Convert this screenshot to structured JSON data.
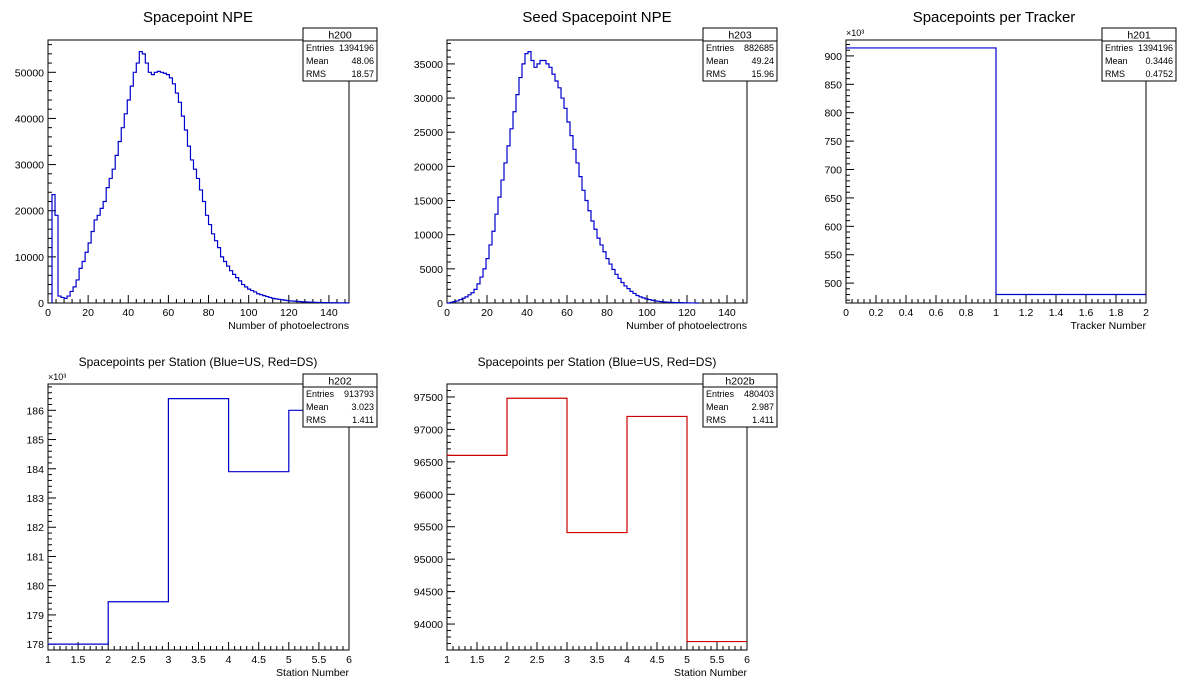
{
  "chart_data": [
    {
      "type": "histogram",
      "title": "Spacepoint NPE",
      "xlabel": "Number of photoelectrons",
      "ylabel": "",
      "xlim": [
        0,
        150
      ],
      "ylim": [
        0,
        57000
      ],
      "xticks": [
        "0",
        "20",
        "40",
        "60",
        "80",
        "100",
        "120",
        "140"
      ],
      "yticks": [
        "0",
        "10000",
        "20000",
        "30000",
        "40000",
        "50000"
      ],
      "y_multiplier": "",
      "line_color": "#0000cc",
      "stats": {
        "name": "h200",
        "entries_label": "Entries",
        "entries": "1394196",
        "mean_label": "Mean",
        "mean": "48.06",
        "rms_label": "RMS",
        "rms": "18.57"
      },
      "bins": {
        "start": 2,
        "width": 1.5
      },
      "values": [
        23500,
        19000,
        1500,
        1200,
        1000,
        1500,
        2500,
        3500,
        5000,
        7500,
        9000,
        11000,
        13000,
        15500,
        18000,
        19000,
        20500,
        22000,
        25000,
        27000,
        29000,
        32000,
        35000,
        38000,
        41000,
        44000,
        47000,
        50000,
        52000,
        54500,
        54000,
        52000,
        50000,
        49500,
        50000,
        50200,
        50000,
        49800,
        49500,
        48800,
        47500,
        45500,
        43500,
        40500,
        37500,
        34000,
        31000,
        29000,
        27000,
        24500,
        22000,
        19000,
        17000,
        15000,
        13500,
        12000,
        10000,
        9000,
        8000,
        7000,
        6200,
        5500,
        4800,
        4000,
        3500,
        3000,
        2700,
        2400,
        2000,
        1800,
        1600,
        1400,
        1200,
        1000,
        900,
        800,
        700,
        600,
        500,
        450,
        400,
        350,
        300,
        250,
        220,
        200,
        180,
        150,
        120,
        100,
        90,
        80,
        70,
        60,
        50,
        40,
        30,
        20,
        20
      ]
    },
    {
      "type": "histogram",
      "title": "Seed Spacepoint NPE",
      "xlabel": "Number of photoelectrons",
      "ylabel": "",
      "xlim": [
        0,
        150
      ],
      "ylim": [
        0,
        38500
      ],
      "xticks": [
        "0",
        "20",
        "40",
        "60",
        "80",
        "100",
        "120",
        "140"
      ],
      "yticks": [
        "0",
        "5000",
        "10000",
        "15000",
        "20000",
        "25000",
        "30000",
        "35000"
      ],
      "y_multiplier": "",
      "line_color": "#0000cc",
      "stats": {
        "name": "h203",
        "entries_label": "Entries",
        "entries": "882685",
        "mean_label": "Mean",
        "mean": "49.24",
        "rms_label": "RMS",
        "rms": "15.96"
      },
      "bins": {
        "start": 0,
        "width": 1.5
      },
      "values": [
        0,
        100,
        200,
        300,
        500,
        700,
        900,
        1200,
        1500,
        2000,
        2800,
        3800,
        5000,
        6500,
        8500,
        10500,
        13000,
        15500,
        18000,
        20500,
        23000,
        25500,
        28000,
        30500,
        33000,
        35000,
        36500,
        36800,
        35500,
        34500,
        35000,
        35500,
        35500,
        35000,
        34500,
        33500,
        32500,
        31500,
        30000,
        28500,
        26500,
        24500,
        22500,
        20500,
        18500,
        16500,
        15000,
        13500,
        12000,
        10800,
        9500,
        8500,
        7500,
        6500,
        5700,
        4900,
        4200,
        3600,
        3000,
        2500,
        2100,
        1700,
        1400,
        1100,
        900,
        750,
        600,
        500,
        400,
        300,
        250,
        200,
        150,
        120,
        100,
        80,
        60,
        50,
        40,
        30,
        20,
        10,
        10,
        5
      ]
    },
    {
      "type": "histogram",
      "title": "Spacepoints per Tracker",
      "xlabel": "Tracker Number",
      "ylabel": "",
      "xlim": [
        0,
        2
      ],
      "ylim": [
        465,
        928
      ],
      "xticks": [
        "0",
        "0.2",
        "0.4",
        "0.6",
        "0.8",
        "1",
        "1.2",
        "1.4",
        "1.6",
        "1.8",
        "2"
      ],
      "yticks": [
        "500",
        "550",
        "600",
        "650",
        "700",
        "750",
        "800",
        "850",
        "900"
      ],
      "y_multiplier": "×10³",
      "line_color": "#0000cc",
      "stats": {
        "name": "h201",
        "entries_label": "Entries",
        "entries": "1394196",
        "mean_label": "Mean",
        "mean": "0.3446",
        "rms_label": "RMS",
        "rms": "0.4752"
      },
      "bins": {
        "start": 0,
        "width": 1
      },
      "values": [
        914,
        480
      ]
    },
    {
      "type": "histogram",
      "title": "Spacepoints per Station (Blue=US, Red=DS)",
      "xlabel": "Station Number",
      "ylabel": "",
      "xlim": [
        1,
        6
      ],
      "ylim": [
        177.8,
        186.9
      ],
      "xticks": [
        "1",
        "1.5",
        "2",
        "2.5",
        "3",
        "3.5",
        "4",
        "4.5",
        "5",
        "5.5",
        "6"
      ],
      "yticks": [
        "178",
        "179",
        "180",
        "181",
        "182",
        "183",
        "184",
        "185",
        "186"
      ],
      "y_multiplier": "×10³",
      "line_color": "#0000cc",
      "stats": {
        "name": "h202",
        "entries_label": "Entries",
        "entries": "913793",
        "mean_label": "Mean",
        "mean": "3.023",
        "rms_label": "RMS",
        "rms": "1.411"
      },
      "bins": {
        "start": 1,
        "width": 1
      },
      "values": [
        178.0,
        179.45,
        186.4,
        183.9,
        186.0
      ]
    },
    {
      "type": "histogram",
      "title": "Spacepoints per Station (Blue=US, Red=DS)",
      "xlabel": "Station Number",
      "ylabel": "",
      "xlim": [
        1,
        6
      ],
      "ylim": [
        93600,
        97700
      ],
      "xticks": [
        "1",
        "1.5",
        "2",
        "2.5",
        "3",
        "3.5",
        "4",
        "4.5",
        "5",
        "5.5",
        "6"
      ],
      "yticks": [
        "94000",
        "94500",
        "95000",
        "95500",
        "96000",
        "96500",
        "97000",
        "97500"
      ],
      "y_multiplier": "",
      "line_color": "#cc0000",
      "stats": {
        "name": "h202b",
        "entries_label": "Entries",
        "entries": "480403",
        "mean_label": "Mean",
        "mean": "2.987",
        "rms_label": "RMS",
        "rms": "1.411"
      },
      "bins": {
        "start": 1,
        "width": 1
      },
      "values": [
        96600,
        97480,
        95410,
        97200,
        93730
      ]
    }
  ]
}
